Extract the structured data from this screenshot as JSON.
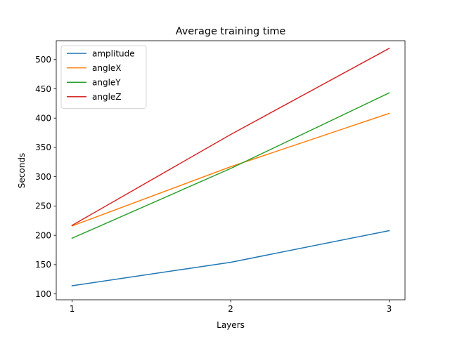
{
  "chart_data": {
    "type": "line",
    "title": "Average training time",
    "xlabel": "Layers",
    "ylabel": "Seconds",
    "x": [
      1,
      2,
      3
    ],
    "xticks": [
      "1",
      "2",
      "3"
    ],
    "yticks": [
      "100",
      "150",
      "200",
      "250",
      "300",
      "350",
      "400",
      "450",
      "500"
    ],
    "ylim": [
      90,
      532
    ],
    "legend_position": "upper-left",
    "series": [
      {
        "name": "amplitude",
        "color": "#1f77b4",
        "values": [
          114,
          154,
          208
        ]
      },
      {
        "name": "angleX",
        "color": "#ff7f0e",
        "values": [
          216,
          317,
          408
        ]
      },
      {
        "name": "angleY",
        "color": "#2ca02c",
        "values": [
          195,
          314,
          443
        ]
      },
      {
        "name": "angleZ",
        "color": "#d62728",
        "values": [
          217,
          372,
          519
        ]
      }
    ]
  }
}
